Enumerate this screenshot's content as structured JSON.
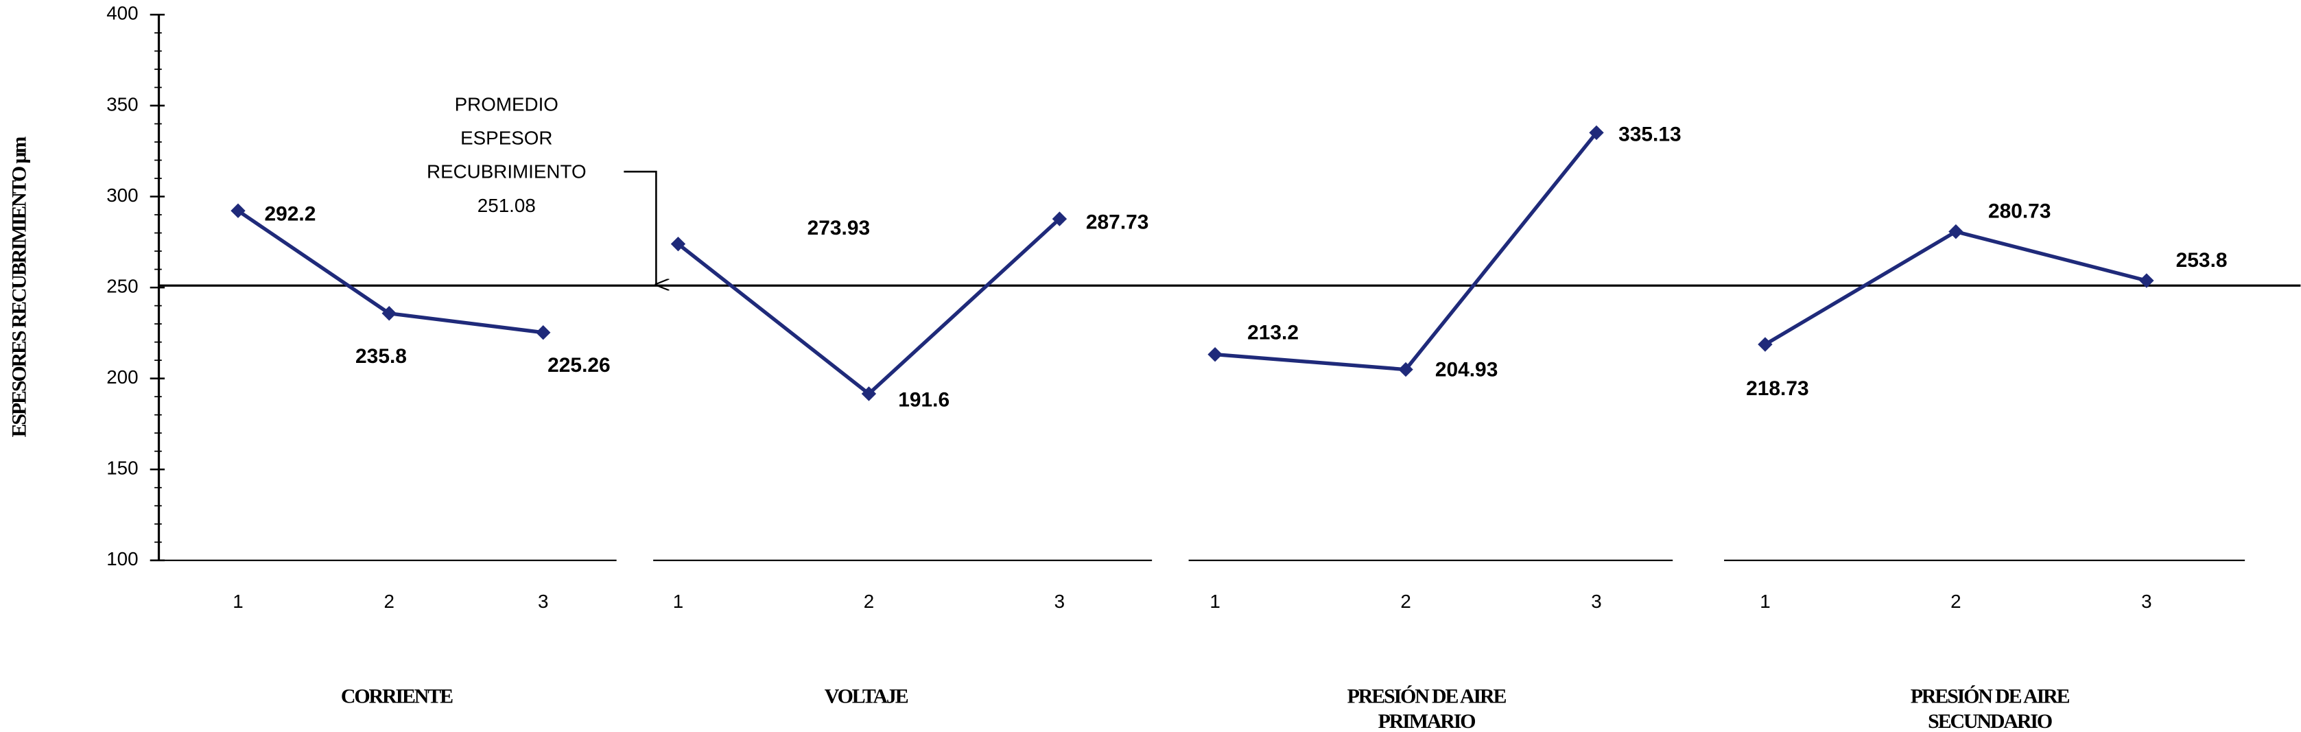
{
  "chart_data": {
    "type": "line",
    "y_label": "ESPESORES RECUBRIMIENTO µm",
    "ylim": [
      100,
      400
    ],
    "yticks": [
      100,
      150,
      200,
      250,
      300,
      350,
      400
    ],
    "color": "#1f2a7a",
    "reference": {
      "label_lines": [
        "PROMEDIO",
        "ESPESOR",
        "RECUBRIMIENTO"
      ],
      "value": 251.08
    },
    "panels": [
      {
        "name_lines": [
          "CORRIENTE"
        ],
        "categories": [
          "1",
          "2",
          "3"
        ],
        "values": [
          292.2,
          235.8,
          225.26
        ]
      },
      {
        "name_lines": [
          "VOLTAJE"
        ],
        "categories": [
          "1",
          "2",
          "3"
        ],
        "values": [
          273.93,
          191.6,
          287.73
        ]
      },
      {
        "name_lines": [
          "PRESIÓN DE AIRE",
          "PRIMARIO"
        ],
        "categories": [
          "1",
          "2",
          "3"
        ],
        "values": [
          213.2,
          204.93,
          335.13
        ]
      },
      {
        "name_lines": [
          "PRESIÓN DE AIRE",
          "SECUNDARIO"
        ],
        "categories": [
          "1",
          "2",
          "3"
        ],
        "values": [
          218.73,
          280.73,
          253.8
        ]
      }
    ]
  }
}
